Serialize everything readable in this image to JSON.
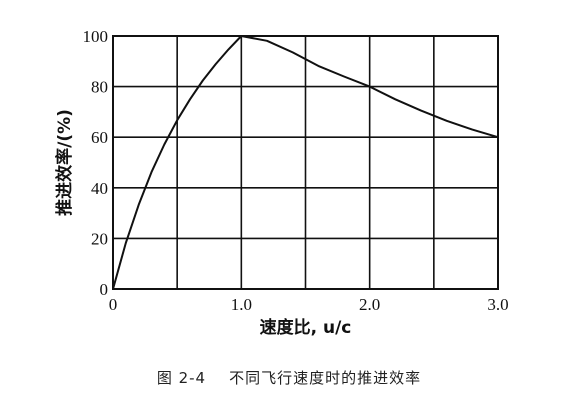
{
  "chart_data": {
    "type": "line",
    "title": "",
    "xlabel": "速度比, u/c",
    "ylabel": "推进效率/(%)",
    "xlim": [
      0,
      3.0
    ],
    "ylim": [
      0,
      100
    ],
    "x_ticks": [
      "0",
      "1.0",
      "2.0",
      "3.0"
    ],
    "y_ticks": [
      "0",
      "20",
      "40",
      "60",
      "80",
      "100"
    ],
    "grid": true,
    "x_minor_gridlines": [
      0.5,
      1.5,
      2.5
    ],
    "series": [
      {
        "x": [
          0,
          0.1,
          0.2,
          0.3,
          0.4,
          0.5,
          0.6,
          0.7,
          0.8,
          0.9,
          1.0,
          1.2,
          1.4,
          1.6,
          1.8,
          2.0,
          2.2,
          2.4,
          2.6,
          2.8,
          3.0
        ],
        "y": [
          0,
          18.2,
          33.3,
          46.2,
          57.1,
          66.7,
          75.0,
          82.4,
          88.9,
          94.7,
          100,
          98.1,
          93.5,
          88.2,
          84.0,
          80.0,
          75.0,
          70.5,
          66.5,
          63.0,
          60.0
        ]
      }
    ]
  },
  "caption": "图 2-4    不同飞行速度时的推进效率",
  "colors": {
    "line": "#111111",
    "grid": "#111111",
    "background": "#ffffff"
  }
}
